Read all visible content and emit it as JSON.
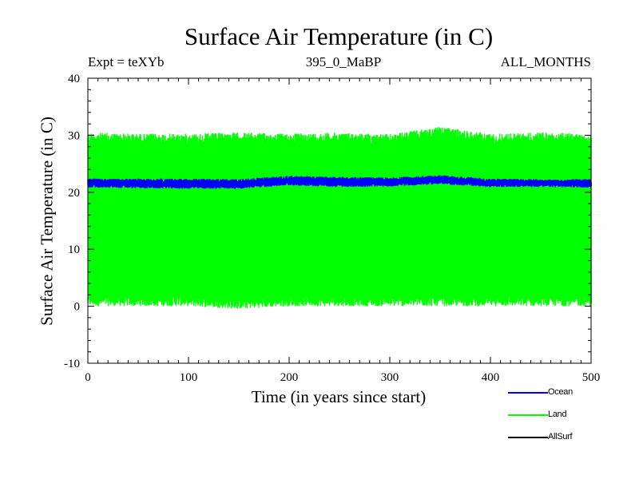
{
  "chart_data": {
    "type": "line",
    "title": "Surface Air Temperature (in C)",
    "subtitle_left": "Expt = teXYb",
    "subtitle_center": "395_0_MaBP",
    "subtitle_right": "ALL_MONTHS",
    "xlabel": "Time (in years since start)",
    "ylabel": "Surface Air Temperature (in C)",
    "xlim": [
      0,
      500
    ],
    "ylim": [
      -10,
      40
    ],
    "xticks": [
      0,
      100,
      200,
      300,
      400,
      500
    ],
    "yticks": [
      -10,
      0,
      10,
      20,
      30,
      40
    ],
    "series": [
      {
        "name": "Ocean",
        "color": "#0000ff",
        "band_x": [
          0,
          50,
          100,
          150,
          200,
          250,
          300,
          350,
          400,
          450,
          500
        ],
        "band_low": [
          20.8,
          20.7,
          20.6,
          20.6,
          21.2,
          20.9,
          21.0,
          21.4,
          20.9,
          20.9,
          20.8
        ],
        "band_high": [
          22.4,
          22.4,
          22.4,
          22.3,
          22.9,
          22.7,
          22.6,
          23.0,
          22.4,
          22.3,
          22.3
        ]
      },
      {
        "name": "Land",
        "color": "#00ff00",
        "band_x": [
          0,
          50,
          100,
          150,
          200,
          250,
          300,
          350,
          400,
          450,
          500
        ],
        "band_low": [
          0.0,
          0.0,
          0.0,
          -0.5,
          0.0,
          0.0,
          0.0,
          0.0,
          0.0,
          0.0,
          0.0
        ],
        "band_high": [
          30.5,
          30.3,
          30.3,
          30.5,
          30.3,
          30.5,
          30.2,
          31.5,
          30.3,
          30.5,
          30.3
        ]
      },
      {
        "name": "AllSurf",
        "color": "#000000"
      }
    ],
    "legend_position": "bottom-right",
    "grid": false
  }
}
